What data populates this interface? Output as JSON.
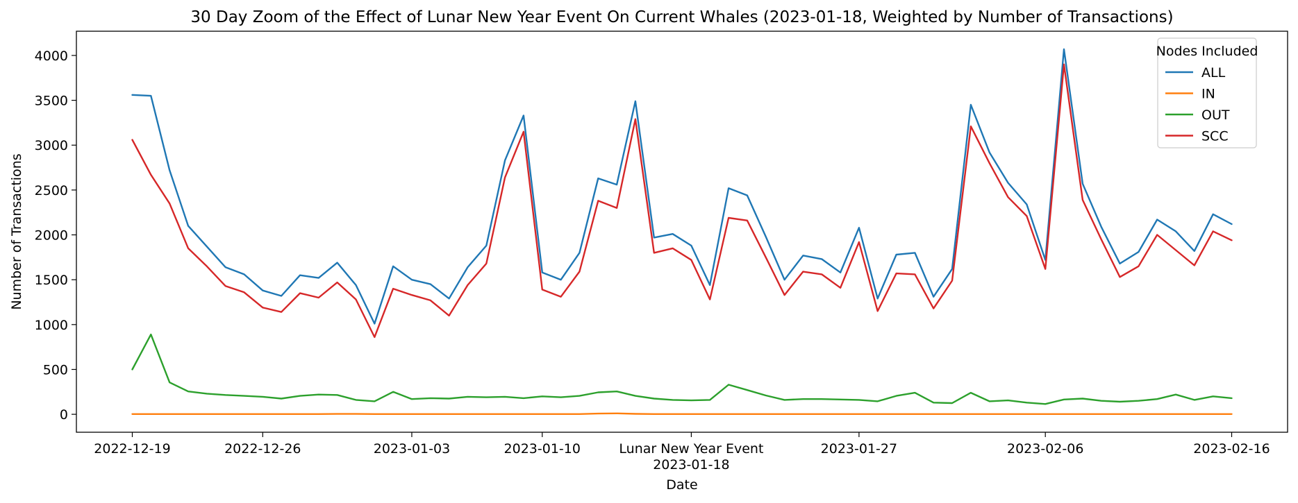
{
  "chart_data": {
    "type": "line",
    "title": "30 Day Zoom of the Effect of Lunar New Year Event On Current Whales (2023-01-18, Weighted by Number of Transactions)",
    "xlabel": "Date",
    "ylabel": "Number of Transactions",
    "start_date": "2022-12-19",
    "x_range": [
      "2022-12-16",
      "2023-02-19"
    ],
    "ylim": [
      -200,
      4270
    ],
    "yticks": [
      0,
      500,
      1000,
      1500,
      2000,
      2500,
      3000,
      3500,
      4000
    ],
    "xticks": [
      {
        "date": "2022-12-19",
        "label": "2022-12-19"
      },
      {
        "date": "2022-12-26",
        "label": "2022-12-26"
      },
      {
        "date": "2023-01-03",
        "label": "2023-01-03"
      },
      {
        "date": "2023-01-10",
        "label": "2023-01-10"
      },
      {
        "date": "2023-01-18",
        "label": "2023-01-18",
        "label2": "Lunar New Year Event"
      },
      {
        "date": "2023-01-27",
        "label": "2023-01-27"
      },
      {
        "date": "2023-02-06",
        "label": "2023-02-06"
      },
      {
        "date": "2023-02-16",
        "label": "2023-02-16"
      }
    ],
    "grid": false,
    "legend": {
      "title": "Nodes Included",
      "placement": "top-right"
    },
    "series": [
      {
        "name": "ALL",
        "color": "#1f77b4",
        "values": [
          3560,
          3550,
          2720,
          2100,
          1870,
          1640,
          1560,
          1380,
          1320,
          1550,
          1520,
          1690,
          1440,
          1010,
          1650,
          1500,
          1450,
          1290,
          1640,
          1880,
          2830,
          3330,
          1580,
          1500,
          1800,
          2630,
          2560,
          3490,
          1970,
          2010,
          1880,
          1440,
          2520,
          2440,
          1980,
          1500,
          1770,
          1730,
          1580,
          2080,
          1290,
          1780,
          1800,
          1310,
          1620,
          3450,
          2920,
          2580,
          2340,
          1720,
          4070,
          2570,
          2090,
          1680,
          1810,
          2170,
          2040,
          1820,
          2230,
          2120
        ]
      },
      {
        "name": "IN",
        "color": "#ff7f0e",
        "values": [
          3,
          3,
          3,
          3,
          3,
          3,
          3,
          3,
          3,
          3,
          3,
          4,
          4,
          3,
          3,
          3,
          3,
          3,
          3,
          3,
          3,
          3,
          3,
          3,
          3,
          8,
          10,
          5,
          3,
          3,
          3,
          3,
          3,
          3,
          3,
          3,
          3,
          3,
          3,
          3,
          3,
          3,
          3,
          3,
          3,
          3,
          3,
          3,
          3,
          3,
          3,
          3,
          3,
          3,
          3,
          3,
          3,
          3,
          3,
          3
        ]
      },
      {
        "name": "OUT",
        "color": "#2ca02c",
        "values": [
          500,
          890,
          355,
          255,
          230,
          215,
          205,
          195,
          175,
          205,
          220,
          215,
          160,
          145,
          250,
          170,
          180,
          175,
          195,
          190,
          195,
          180,
          200,
          190,
          205,
          245,
          255,
          205,
          175,
          160,
          155,
          160,
          330,
          270,
          210,
          160,
          170,
          170,
          165,
          160,
          145,
          205,
          240,
          130,
          125,
          240,
          145,
          155,
          130,
          115,
          165,
          175,
          150,
          140,
          150,
          170,
          220,
          160,
          200,
          180
        ]
      },
      {
        "name": "SCC",
        "color": "#d62728",
        "values": [
          3060,
          2670,
          2350,
          1850,
          1650,
          1430,
          1360,
          1190,
          1140,
          1350,
          1300,
          1470,
          1280,
          860,
          1400,
          1330,
          1270,
          1100,
          1440,
          1680,
          2640,
          3150,
          1390,
          1310,
          1590,
          2380,
          2300,
          3290,
          1800,
          1850,
          1720,
          1280,
          2190,
          2160,
          1750,
          1330,
          1590,
          1560,
          1410,
          1920,
          1150,
          1570,
          1560,
          1180,
          1490,
          3210,
          2800,
          2420,
          2210,
          1620,
          3900,
          2390,
          1950,
          1530,
          1650,
          2000,
          1830,
          1660,
          2040,
          1940
        ]
      }
    ]
  }
}
